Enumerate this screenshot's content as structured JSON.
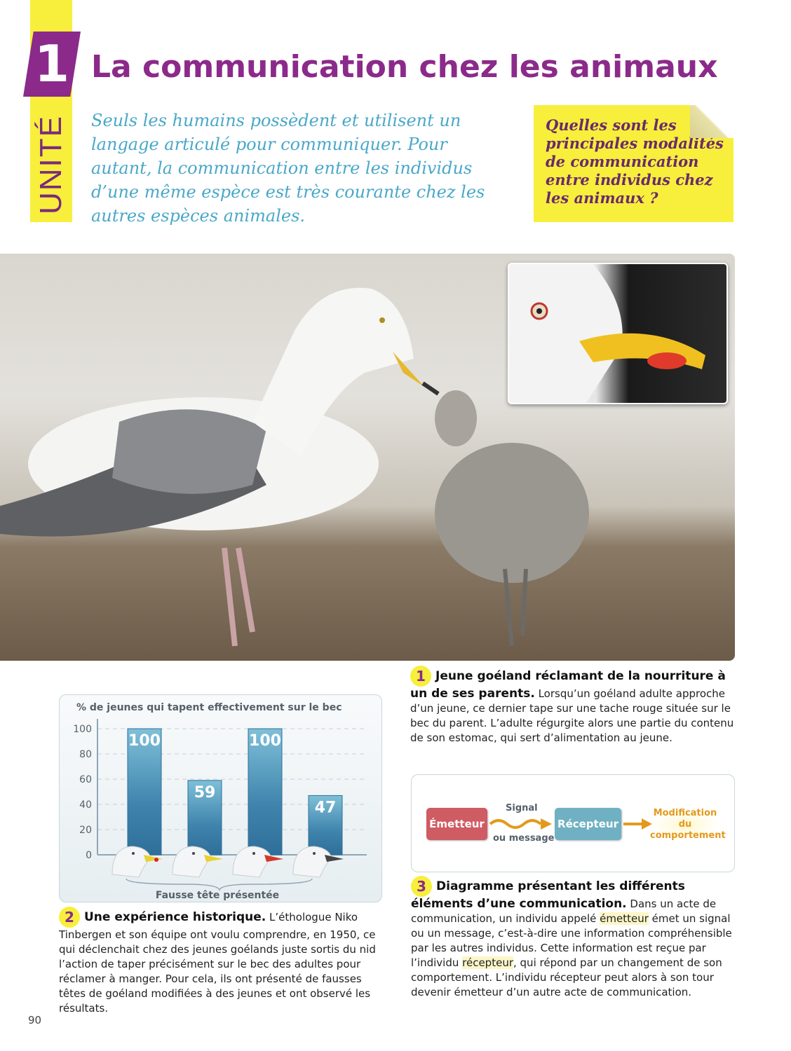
{
  "header": {
    "unit_label": "UNITÉ",
    "unit_number": "1",
    "title": "La communication chez les animaux",
    "intro": "Seuls les humains possèdent et utilisent un langage articulé pour communiquer. Pour autant, la communication entre les individus d’une même espèce est très courante chez les autres espèces animales.",
    "question": "Quelles sont les principales modalités de communication entre individus chez les animaux ?"
  },
  "doc1": {
    "number": "1",
    "title": "Jeune goéland réclamant de la nourriture à un de ses parents.",
    "text": "Lorsqu’un goéland adulte approche d’un jeune, ce dernier tape sur une tache rouge située sur le bec du parent. L’adulte régurgite alors une partie du contenu de son estomac, qui sert d’alimentation au jeune."
  },
  "doc2": {
    "number": "2",
    "title": "Une expérience historique.",
    "text": "L’éthologue Niko Tinbergen et son équipe ont voulu comprendre, en 1950, ce qui déclenchait chez des jeunes goélands juste sortis du nid l’action de taper précisément sur le bec des adultes pour réclamer à manger. Pour cela, ils ont présenté de fausses têtes de goéland modifiées à des jeunes et ont observé les résultats."
  },
  "chart_data": {
    "type": "bar",
    "ylabel": "% de jeunes qui tapent effectivement sur le bec",
    "xlabel": "Fausse tête présentée",
    "categories": [
      "bec jaune avec tache rouge",
      "bec jaune sans tache",
      "bec rouge",
      "bec noir"
    ],
    "category_beak_colors": [
      "#e8d230",
      "#e8d230",
      "#d23a2a",
      "#444444"
    ],
    "values": [
      100,
      59,
      100,
      47
    ],
    "ylim": [
      0,
      100
    ],
    "yticks": [
      0,
      20,
      40,
      60,
      80,
      100
    ],
    "grid": true,
    "bar_color": "#3f84ad"
  },
  "doc3": {
    "number": "3",
    "title": "Diagramme présentant les différents éléments d’une communication.",
    "text_parts": [
      "Dans un acte de communication, un individu appelé ",
      "émetteur",
      " émet un signal ou un message, c’est-à-dire une information compréhensible par les autres individus. Cette information est reçue par l’individu ",
      "récepteur",
      ", qui répond par un changement de son comportement. L’individu récepteur peut alors à son tour devenir émetteur d’un autre acte de communication."
    ],
    "diagram": {
      "emitter": "Émetteur",
      "signal_top": "Signal",
      "signal_bottom": "ou message",
      "receiver": "Récepteur",
      "result": "Modification du comportement"
    }
  },
  "colors": {
    "accent": "#8b2a8a",
    "yellow": "#f7ef3c",
    "intro": "#4aa8c8",
    "emitter": "#cf5b63",
    "receiver": "#6fb1c2",
    "result": "#e39a1c"
  },
  "footer": {
    "page_number": "90"
  }
}
